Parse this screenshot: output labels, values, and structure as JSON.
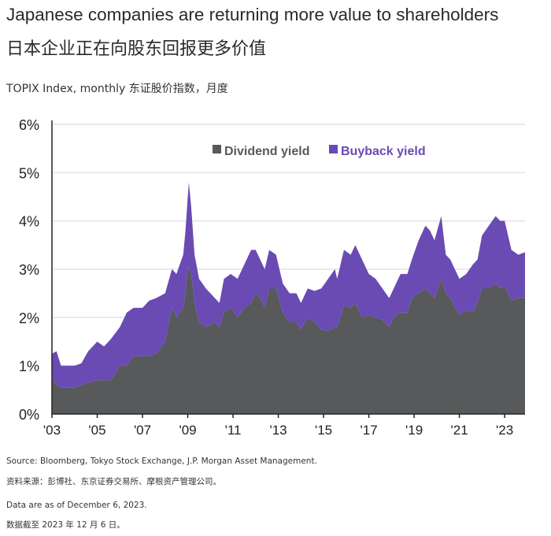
{
  "title": "Japanese companies are returning more value to shareholders",
  "title_cn": "日本企业正在向股东回报更多价值",
  "subtitle": "TOPIX Index, monthly 东证股价指数，月度",
  "footnotes": [
    "Source: Bloomberg, Tokyo Stock Exchange, J.P. Morgan Asset Management.",
    "资料来源：彭博社、东京证券交易所、摩根资产管理公司。",
    "Data are as of December 6, 2023.",
    "数据截至 2023 年 12 月 6 日。"
  ],
  "chart_data": {
    "type": "area",
    "stacked": true,
    "title": "",
    "xlabel": "",
    "ylabel": "",
    "xlim": [
      2003,
      2023.9
    ],
    "ylim": [
      0,
      6
    ],
    "grid": true,
    "legend": "top",
    "x_ticks": [
      "'03",
      "'05",
      "'07",
      "'09",
      "'11",
      "'13",
      "'15",
      "'17",
      "'19",
      "'21",
      "'23"
    ],
    "y_ticks": [
      "0%",
      "1%",
      "2%",
      "3%",
      "4%",
      "5%",
      "6%"
    ],
    "x": [
      2003.0,
      2003.2,
      2003.4,
      2004.0,
      2004.3,
      2004.6,
      2005.0,
      2005.3,
      2005.6,
      2006.0,
      2006.3,
      2006.6,
      2007.0,
      2007.3,
      2007.6,
      2008.0,
      2008.3,
      2008.5,
      2008.8,
      2008.9,
      2009.0,
      2009.05,
      2009.15,
      2009.3,
      2009.5,
      2009.8,
      2010.2,
      2010.4,
      2010.6,
      2010.9,
      2011.2,
      2011.5,
      2011.8,
      2012.0,
      2012.2,
      2012.4,
      2012.6,
      2012.9,
      2013.2,
      2013.5,
      2013.8,
      2014.0,
      2014.3,
      2014.6,
      2014.9,
      2015.2,
      2015.5,
      2015.6,
      2015.9,
      2016.2,
      2016.4,
      2016.7,
      2017.0,
      2017.3,
      2017.6,
      2017.9,
      2018.1,
      2018.4,
      2018.7,
      2018.9,
      2019.2,
      2019.5,
      2019.7,
      2019.9,
      2020.2,
      2020.4,
      2020.6,
      2020.8,
      2021.0,
      2021.3,
      2021.6,
      2021.8,
      2022.0,
      2022.3,
      2022.6,
      2022.8,
      2023.0,
      2023.3,
      2023.6,
      2023.9
    ],
    "series": [
      {
        "name": "Dividend yield",
        "color": "#57595b",
        "values": [
          0.75,
          0.6,
          0.55,
          0.55,
          0.6,
          0.65,
          0.7,
          0.7,
          0.7,
          1.0,
          1.0,
          1.2,
          1.2,
          1.2,
          1.25,
          1.5,
          2.2,
          2.0,
          2.2,
          2.5,
          3.05,
          3.0,
          2.9,
          2.3,
          1.9,
          1.8,
          1.9,
          1.8,
          2.1,
          2.2,
          2.0,
          2.2,
          2.3,
          2.5,
          2.4,
          2.2,
          2.6,
          2.6,
          2.1,
          1.9,
          1.9,
          1.75,
          2.0,
          1.9,
          1.75,
          1.72,
          1.8,
          1.8,
          2.25,
          2.2,
          2.3,
          2.0,
          2.05,
          2.0,
          1.95,
          1.8,
          2.0,
          2.1,
          2.1,
          2.4,
          2.5,
          2.6,
          2.5,
          2.4,
          2.8,
          2.5,
          2.4,
          2.2,
          2.05,
          2.15,
          2.1,
          2.3,
          2.6,
          2.6,
          2.7,
          2.6,
          2.65,
          2.35,
          2.4,
          2.4
        ]
      },
      {
        "name": "Buyback yield",
        "color": "#6a4bb4",
        "values": [
          0.5,
          0.7,
          0.45,
          0.45,
          0.45,
          0.65,
          0.8,
          0.7,
          0.85,
          0.8,
          1.1,
          1.0,
          1.0,
          1.15,
          1.15,
          1.0,
          0.8,
          0.9,
          1.1,
          1.3,
          1.45,
          1.8,
          1.4,
          1.0,
          0.9,
          0.8,
          0.5,
          0.5,
          0.7,
          0.7,
          0.8,
          0.9,
          1.1,
          0.9,
          0.8,
          0.8,
          0.8,
          0.7,
          0.6,
          0.6,
          0.6,
          0.55,
          0.6,
          0.65,
          0.85,
          1.08,
          1.2,
          1.0,
          1.15,
          1.1,
          1.2,
          1.2,
          0.85,
          0.8,
          0.65,
          0.6,
          0.6,
          0.8,
          0.8,
          0.8,
          1.1,
          1.3,
          1.3,
          1.2,
          1.3,
          0.8,
          0.8,
          0.8,
          0.75,
          0.75,
          1.0,
          0.9,
          1.1,
          1.3,
          1.4,
          1.4,
          1.35,
          1.05,
          0.9,
          0.95
        ]
      }
    ]
  }
}
